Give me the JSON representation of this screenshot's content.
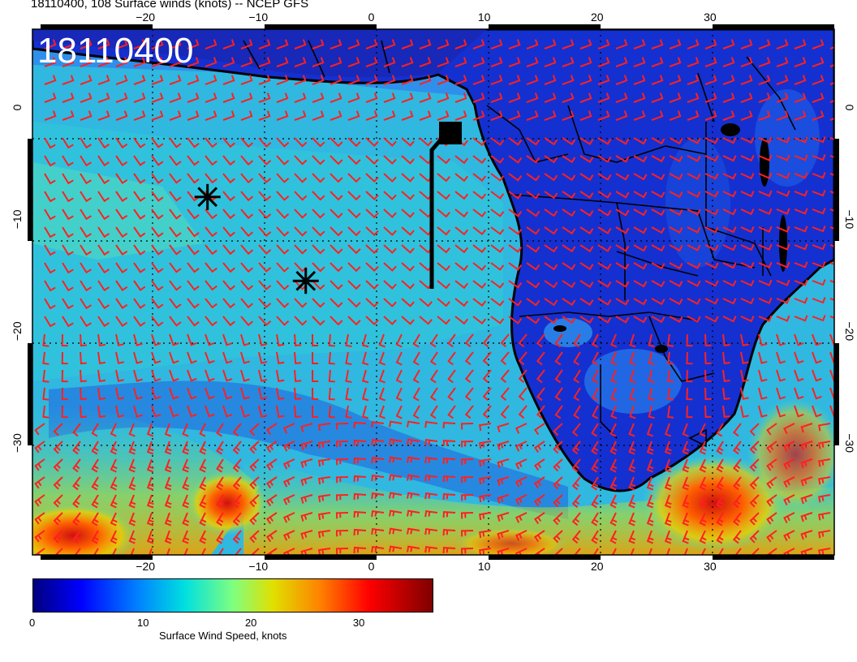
{
  "title": "18110400, 108 Surface winds (knots) -- NCEP GFS",
  "date_stamp": "18110400",
  "map": {
    "lon_range": [
      -30,
      41
    ],
    "lat_range": [
      -40,
      7
    ],
    "x_ticks": [
      -20,
      -10,
      0,
      10,
      20,
      30
    ],
    "y_ticks": [
      0,
      -10,
      -20,
      -30
    ]
  },
  "colorbar": {
    "label": "Surface Wind Speed, knots",
    "ticks": [
      "0",
      "10",
      "20",
      "30"
    ],
    "range": [
      0,
      37
    ]
  },
  "markers": [
    {
      "name": "asterisk-1",
      "lon": -14.5,
      "lat": -8
    },
    {
      "name": "asterisk-2",
      "lon": -5.8,
      "lat": -15.5
    }
  ],
  "flight_track_icon": "square-endpoint"
}
